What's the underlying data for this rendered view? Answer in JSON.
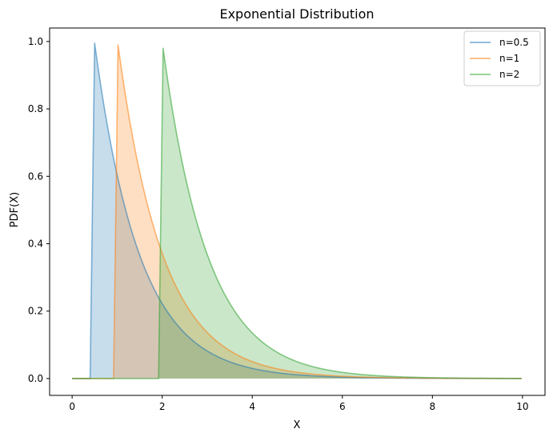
{
  "chart_data": {
    "type": "area",
    "title": "Exponential Distribution",
    "xlabel": "X",
    "ylabel": "PDF(X)",
    "xlim": [
      -0.5,
      10.5
    ],
    "ylim": [
      -0.05,
      1.04
    ],
    "x_ticks": [
      0,
      2,
      4,
      6,
      8,
      10
    ],
    "x_tick_labels": [
      "0",
      "2",
      "4",
      "6",
      "8",
      "10"
    ],
    "y_ticks": [
      0.0,
      0.2,
      0.4,
      0.6,
      0.8,
      1.0
    ],
    "y_tick_labels": [
      "0.0",
      "0.2",
      "0.4",
      "0.6",
      "0.8",
      "1.0"
    ],
    "grid": false,
    "legend_position": "top-right",
    "series": [
      {
        "name": "n=0.5",
        "color": "#1f77b4",
        "shift": 0.5,
        "x": [
          0,
          0.4,
          0.5,
          0.75,
          1.0,
          1.5,
          2.0,
          2.5,
          3.0,
          3.5,
          4.0,
          5.0,
          6.0,
          7.0,
          8.0,
          9.0,
          10.0
        ],
        "y": [
          0,
          0,
          0.995,
          0.775,
          0.603,
          0.366,
          0.222,
          0.135,
          0.082,
          0.05,
          0.03,
          0.011,
          0.004,
          0.0015,
          0.0006,
          0.0002,
          0.0001
        ]
      },
      {
        "name": "n=1",
        "color": "#ff7f0e",
        "shift": 1,
        "x": [
          0,
          0.92,
          1.02,
          1.25,
          1.5,
          2.0,
          2.5,
          3.0,
          3.5,
          4.0,
          5.0,
          6.0,
          7.0,
          8.0,
          9.0,
          10.0
        ],
        "y": [
          0,
          0,
          0.99,
          0.779,
          0.607,
          0.368,
          0.223,
          0.135,
          0.082,
          0.05,
          0.018,
          0.007,
          0.0025,
          0.0009,
          0.0003,
          0.0001
        ]
      },
      {
        "name": "n=2",
        "color": "#2ca02c",
        "shift": 2,
        "x": [
          0,
          1.92,
          2.02,
          2.25,
          2.5,
          3.0,
          3.5,
          4.0,
          4.5,
          5.0,
          6.0,
          7.0,
          8.0,
          9.0,
          10.0
        ],
        "y": [
          0,
          0,
          0.98,
          0.779,
          0.607,
          0.368,
          0.223,
          0.135,
          0.082,
          0.05,
          0.018,
          0.007,
          0.0025,
          0.0009,
          0.0003
        ]
      }
    ]
  }
}
